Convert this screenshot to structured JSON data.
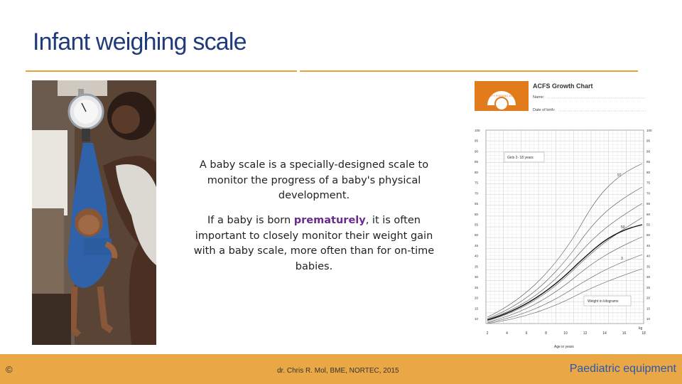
{
  "slide": {
    "title": "Infant weighing scale",
    "paragraph1": "A baby scale is a specially-designed scale to monitor the progress of a baby's physical development.",
    "paragraph2_before": "If a baby is born ",
    "paragraph2_highlight": "prematurely",
    "paragraph2_after": ", it is often important to closely monitor their weight gain with a baby scale, more often than for on-time babies."
  },
  "growth_chart": {
    "header_title": "ACFS Growth Chart",
    "name_label": "Name:",
    "dob_label": "Date of birth:",
    "logo_text": "COMMUNITY FEEDING EDUCATION",
    "box_top": "Girls 2- 18 years",
    "box_bottom": "Weight in kilograms",
    "y_ticks": [
      "100",
      "95",
      "90",
      "85",
      "80",
      "75",
      "70",
      "65",
      "60",
      "55",
      "50",
      "45",
      "40",
      "35",
      "30",
      "25",
      "20",
      "15",
      "10"
    ],
    "x_ticks": [
      "2",
      "4",
      "6",
      "8",
      "10",
      "12",
      "14",
      "16",
      "18"
    ],
    "x_axis_label": "Age in years",
    "kg_unit": "kg",
    "percentiles": [
      "97",
      "50",
      "3"
    ]
  },
  "footer": {
    "copyright": "©",
    "credit": "dr. Chris R. Mol, BME, NORTEC, 2015",
    "section": "Paediatric equipment"
  },
  "colors": {
    "accent": "#e9a845",
    "title": "#1f3b7a",
    "highlight": "#6a2c8c",
    "footer_text": "#2b56b3"
  }
}
